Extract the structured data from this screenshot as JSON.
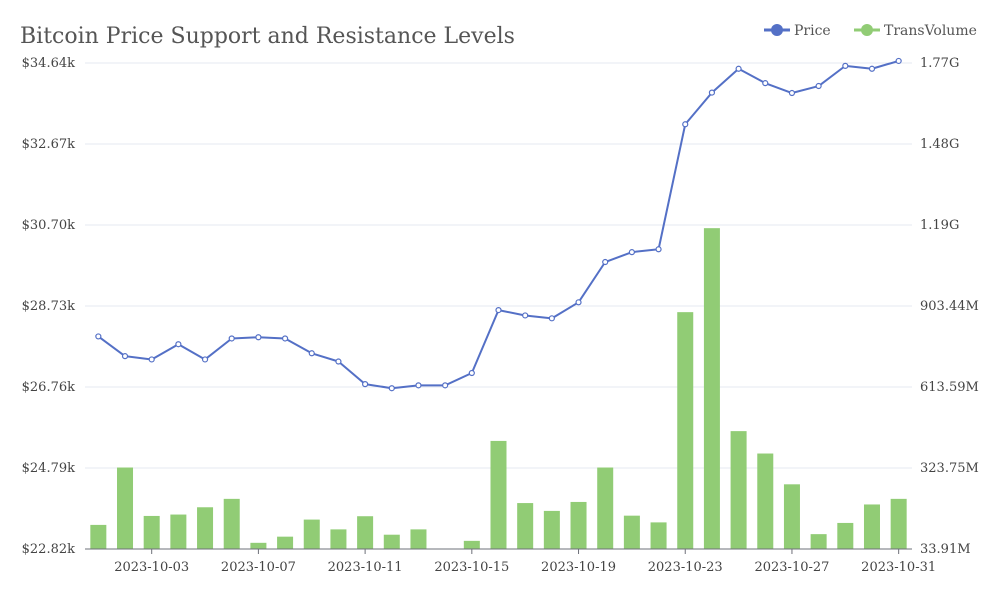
{
  "chart_data": {
    "type": "bar+line",
    "title": "Bitcoin Price Support and Resistance Levels",
    "legend": {
      "position": "top-right",
      "items": [
        "Price",
        "TransVolume"
      ]
    },
    "colors": {
      "price": "#5470c6",
      "volume": "#91cc75"
    },
    "grid": true,
    "x": [
      "2023-10-01",
      "2023-10-02",
      "2023-10-03",
      "2023-10-04",
      "2023-10-05",
      "2023-10-06",
      "2023-10-07",
      "2023-10-08",
      "2023-10-09",
      "2023-10-10",
      "2023-10-11",
      "2023-10-12",
      "2023-10-13",
      "2023-10-14",
      "2023-10-15",
      "2023-10-16",
      "2023-10-17",
      "2023-10-18",
      "2023-10-19",
      "2023-10-20",
      "2023-10-21",
      "2023-10-22",
      "2023-10-23",
      "2023-10-24",
      "2023-10-25",
      "2023-10-26",
      "2023-10-27",
      "2023-10-28",
      "2023-10-29",
      "2023-10-30",
      "2023-10-31"
    ],
    "x_tick_labels": [
      "2023-10-03",
      "2023-10-07",
      "2023-10-11",
      "2023-10-15",
      "2023-10-19",
      "2023-10-23",
      "2023-10-27",
      "2023-10-31"
    ],
    "y_left": {
      "min": 22820,
      "max": 34640,
      "tick_labels": [
        "$22.82k",
        "$24.79k",
        "$26.76k",
        "$28.73k",
        "$30.70k",
        "$32.67k",
        "$34.64k"
      ]
    },
    "y_right": {
      "min": 33910000,
      "max": 1770000000,
      "tick_labels": [
        "33.91M",
        "323.75M",
        "613.59M",
        "903.44M",
        "1.19G",
        "1.48G",
        "1.77G"
      ]
    },
    "series": [
      {
        "name": "Price",
        "type": "line",
        "axis": "left",
        "values": [
          27990,
          27510,
          27430,
          27800,
          27430,
          27940,
          27970,
          27940,
          27580,
          27380,
          26830,
          26730,
          26800,
          26800,
          27100,
          28630,
          28500,
          28430,
          28820,
          29800,
          30040,
          30110,
          33150,
          33920,
          34500,
          34150,
          33910,
          34080,
          34570,
          34500,
          34690
        ]
      },
      {
        "name": "TransVolume",
        "type": "bar",
        "axis": "right",
        "values": [
          120000000,
          325000000,
          152000000,
          157000000,
          183000000,
          213000000,
          56000000,
          78000000,
          139000000,
          104000000,
          151000000,
          85000000,
          104000000,
          30000000,
          63000000,
          420000000,
          198000000,
          170000000,
          202000000,
          325000000,
          153000000,
          129000000,
          880000000,
          1180000000,
          455000000,
          375000000,
          265000000,
          87000000,
          127000000,
          193000000,
          213000000
        ]
      }
    ]
  }
}
